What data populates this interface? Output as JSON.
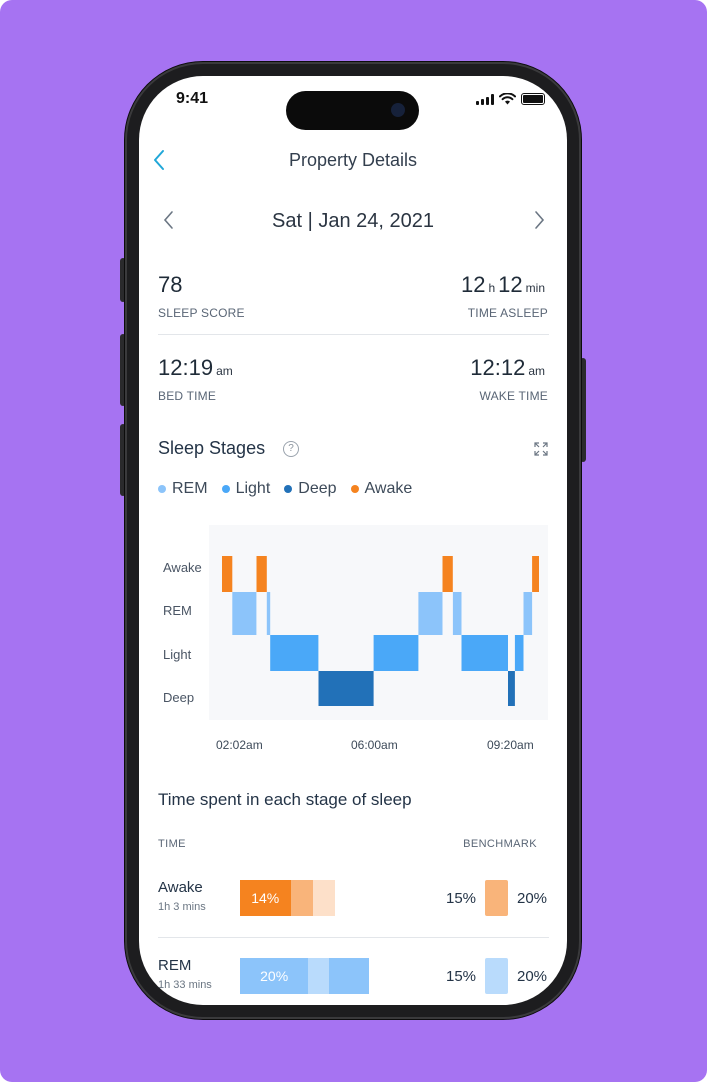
{
  "status_bar": {
    "time": "9:41"
  },
  "nav": {
    "title": "Property Details"
  },
  "date": {
    "label": "Sat | Jan 24, 2021"
  },
  "stats": {
    "sleep_score": {
      "value": "78",
      "caption": "SLEEP SCORE"
    },
    "time_asleep": {
      "hours": "12",
      "hours_unit": "h",
      "minutes": "12",
      "minutes_unit": "min",
      "caption": "TIME ASLEEP"
    },
    "bed_time": {
      "value": "12:19",
      "unit": "am",
      "caption": "BED TIME"
    },
    "wake_time": {
      "value": "12:12",
      "unit": "am",
      "caption": "WAKE TIME"
    }
  },
  "sleep_stages": {
    "title": "Sleep Stages",
    "help_glyph": "?",
    "legend": [
      {
        "label": "REM",
        "color": "#8cc4fa"
      },
      {
        "label": "Light",
        "color": "#4aa8f8"
      },
      {
        "label": "Deep",
        "color": "#2271b8"
      },
      {
        "label": "Awake",
        "color": "#f5831f"
      }
    ]
  },
  "chart_data": {
    "type": "bar",
    "title": "Sleep Stages",
    "stages": [
      "Awake",
      "REM",
      "Light",
      "Deep"
    ],
    "x_ticks": [
      "02:02am",
      "06:00am",
      "09:20am"
    ],
    "segments": [
      {
        "stage": "Awake",
        "start": 0.0,
        "end": 0.3
      },
      {
        "stage": "REM",
        "start": 0.3,
        "end": 1.0
      },
      {
        "stage": "Awake",
        "start": 1.0,
        "end": 1.3
      },
      {
        "stage": "REM",
        "start": 1.3,
        "end": 1.4
      },
      {
        "stage": "Light",
        "start": 1.4,
        "end": 2.8
      },
      {
        "stage": "Deep",
        "start": 2.8,
        "end": 4.4
      },
      {
        "stage": "Light",
        "start": 4.4,
        "end": 5.7
      },
      {
        "stage": "REM",
        "start": 5.7,
        "end": 6.4
      },
      {
        "stage": "Awake",
        "start": 6.4,
        "end": 6.7
      },
      {
        "stage": "REM",
        "start": 6.7,
        "end": 6.95
      },
      {
        "stage": "Light",
        "start": 6.95,
        "end": 8.3
      },
      {
        "stage": "Deep",
        "start": 8.3,
        "end": 8.5
      },
      {
        "stage": "Light",
        "start": 8.5,
        "end": 8.75
      },
      {
        "stage": "REM",
        "start": 8.75,
        "end": 9.0
      },
      {
        "stage": "Awake",
        "start": 9.0,
        "end": 9.2
      }
    ],
    "x_range": [
      0,
      9.2
    ],
    "legend_position": "top-left",
    "grid": false
  },
  "time_spent": {
    "title": "Time spent in each stage of sleep",
    "col_time": "TIME",
    "col_benchmark": "BENCHMARK",
    "rows": [
      {
        "name": "Awake",
        "duration": "1h 3 mins",
        "percent_label": "14%",
        "bar": [
          {
            "fraction": 0.53,
            "color": "#f5831f"
          },
          {
            "fraction": 0.24,
            "color": "#f9b47a"
          },
          {
            "fraction": 0.23,
            "color": "#fde0c9"
          }
        ],
        "bench_low": "15%",
        "bench_high": "20%",
        "bench_color": "#f9b47a",
        "bar_scale": 0.68
      },
      {
        "name": "REM",
        "duration": "1h 33 mins",
        "percent_label": "20%",
        "bar": [
          {
            "fraction": 0.53,
            "color": "#8cc4fa"
          },
          {
            "fraction": 0.16,
            "color": "#b9dbfc"
          },
          {
            "fraction": 0.31,
            "color": "#8cc4fa"
          }
        ],
        "bench_low": "15%",
        "bench_high": "20%",
        "bench_color": "#b9dbfc",
        "bar_scale": 0.92
      }
    ]
  }
}
